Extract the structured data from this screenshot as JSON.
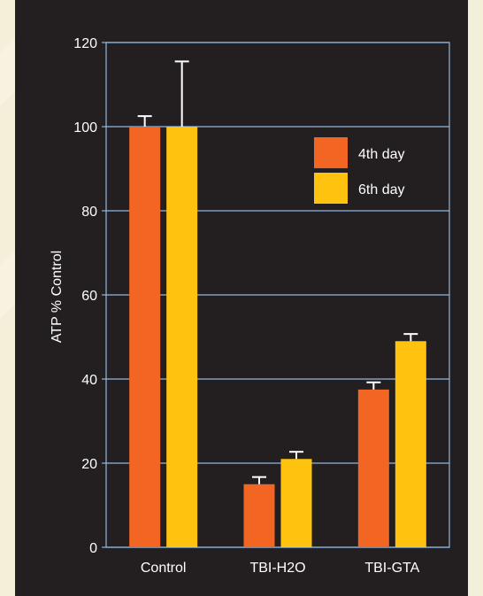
{
  "chart_data": {
    "type": "bar",
    "title": "",
    "xlabel": "",
    "ylabel": "ATP % Control",
    "categories": [
      "Control",
      "TBI-H2O",
      "TBI-GTA"
    ],
    "series": [
      {
        "name": "4th day",
        "color": "#f26522",
        "values": [
          100,
          15,
          37.5
        ],
        "errors": [
          2.5,
          1.7,
          1.7
        ]
      },
      {
        "name": "6th day",
        "color": "#ffc20e",
        "values": [
          100,
          21,
          49
        ],
        "errors": [
          15.5,
          1.7,
          1.7
        ]
      }
    ],
    "ylim": [
      0,
      120
    ],
    "yticks": [
      0,
      20,
      40,
      60,
      80,
      100,
      120
    ],
    "grid": true,
    "legend_position": "top-right",
    "colors": {
      "background": "#231f20",
      "grid": "#8fb8e0",
      "text": "#ffffff",
      "page": "#f3efd9"
    }
  }
}
